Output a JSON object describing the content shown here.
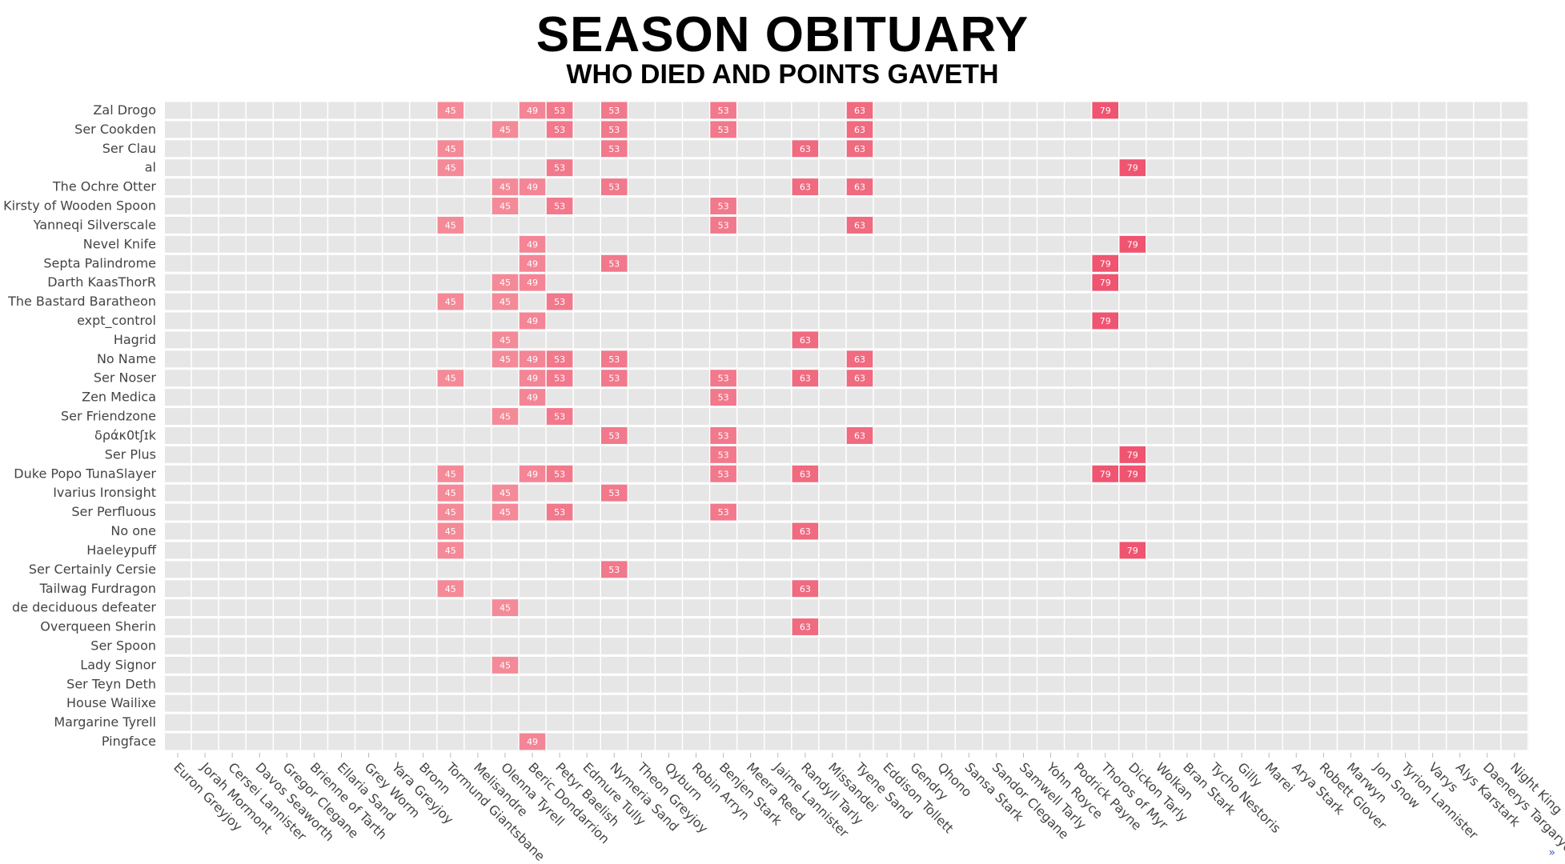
{
  "header": {
    "title": "SEASON OBITUARY",
    "subtitle": "WHO DIED AND POINTS GAVETH"
  },
  "more_link": "»",
  "colors": {
    "background": "#ffffff",
    "row_band": "#e6e6e6",
    "grid": "#ffffff",
    "tick": "#bbbbbb",
    "text": "#444444",
    "points_45": "#f48a98",
    "points_49": "#f48596",
    "points_53": "#f2788c",
    "points_63": "#f06a80",
    "points_79": "#ef5470"
  },
  "chart_data": {
    "type": "heatmap",
    "title": "SEASON OBITUARY",
    "subtitle": "WHO DIED AND POINTS GAVETH",
    "x": [
      "Euron Greyjoy",
      "Jorah Mormont",
      "Cersei Lannister",
      "Davos Seaworth",
      "Gregor Clegane",
      "Brienne of Tarth",
      "Ellaria Sand",
      "Grey Worm",
      "Yara Greyjoy",
      "Bronn",
      "Tormund Giantsbane",
      "Melisandre",
      "Olenna Tyrell",
      "Beric Dondarrion",
      "Petyr Baelish",
      "Edmure Tully",
      "Nymeria Sand",
      "Theon Greyjoy",
      "Qyburn",
      "Robin Arryn",
      "Benjen Stark",
      "Meera Reed",
      "Jaime Lannister",
      "Randyll Tarly",
      "Missandei",
      "Tyene Sand",
      "Eddison Tollett",
      "Gendry",
      "Qhono",
      "Sansa Stark",
      "Sandor Clegane",
      "Samwell Tarly",
      "Yohn Royce",
      "Podrick Payne",
      "Thoros of Myr",
      "Dickon Tarly",
      "Wolkan",
      "Bran Stark",
      "Tycho Nestoris",
      "Gilly",
      "Marei",
      "Arya Stark",
      "Robett Glover",
      "Marwyn",
      "Jon Snow",
      "Tyrion Lannister",
      "Varys",
      "Alys Karstark",
      "Daenerys Targaryen",
      "Night King"
    ],
    "y": [
      "Zal Drogo",
      "Ser Cookden",
      "Ser Clau",
      "al",
      "The Ochre Otter",
      "Kirsty of Wooden Spoon",
      "Yanneqi Silverscale",
      "Nevel Knife",
      "Septa Palindrome",
      "Darth KaasThorR",
      "The Bastard Baratheon",
      "expt_control",
      "Hagrid",
      "No Name",
      "Ser Noser",
      "Zen Medica",
      "Ser Friendzone",
      "δράκ0tʃɪk",
      "Ser Plus",
      "Duke Popo TunaSlayer",
      "Ivarius Ironsight",
      "Ser Perfluous",
      "No one",
      "Haeleypuff",
      "Ser Certainly Cersie",
      "Tailwag Furdragon",
      "de deciduous defeater",
      "Overqueen Sherin",
      "Ser Spoon",
      "Lady Signor",
      "Ser Teyn Deth",
      "House Wailixe",
      "Margarine Tyrell",
      "Pingface"
    ],
    "cells": [
      {
        "y": "Zal Drogo",
        "x": "Tormund Giantsbane",
        "value": 45
      },
      {
        "y": "Zal Drogo",
        "x": "Beric Dondarrion",
        "value": 49
      },
      {
        "y": "Zal Drogo",
        "x": "Petyr Baelish",
        "value": 53
      },
      {
        "y": "Zal Drogo",
        "x": "Nymeria Sand",
        "value": 53
      },
      {
        "y": "Zal Drogo",
        "x": "Benjen Stark",
        "value": 53
      },
      {
        "y": "Zal Drogo",
        "x": "Tyene Sand",
        "value": 63
      },
      {
        "y": "Zal Drogo",
        "x": "Thoros of Myr",
        "value": 79
      },
      {
        "y": "Ser Cookden",
        "x": "Olenna Tyrell",
        "value": 45
      },
      {
        "y": "Ser Cookden",
        "x": "Petyr Baelish",
        "value": 53
      },
      {
        "y": "Ser Cookden",
        "x": "Nymeria Sand",
        "value": 53
      },
      {
        "y": "Ser Cookden",
        "x": "Benjen Stark",
        "value": 53
      },
      {
        "y": "Ser Cookden",
        "x": "Tyene Sand",
        "value": 63
      },
      {
        "y": "Ser Clau",
        "x": "Tormund Giantsbane",
        "value": 45
      },
      {
        "y": "Ser Clau",
        "x": "Nymeria Sand",
        "value": 53
      },
      {
        "y": "Ser Clau",
        "x": "Randyll Tarly",
        "value": 63
      },
      {
        "y": "Ser Clau",
        "x": "Tyene Sand",
        "value": 63
      },
      {
        "y": "al",
        "x": "Tormund Giantsbane",
        "value": 45
      },
      {
        "y": "al",
        "x": "Petyr Baelish",
        "value": 53
      },
      {
        "y": "al",
        "x": "Dickon Tarly",
        "value": 79
      },
      {
        "y": "The Ochre Otter",
        "x": "Olenna Tyrell",
        "value": 45
      },
      {
        "y": "The Ochre Otter",
        "x": "Beric Dondarrion",
        "value": 49
      },
      {
        "y": "The Ochre Otter",
        "x": "Nymeria Sand",
        "value": 53
      },
      {
        "y": "The Ochre Otter",
        "x": "Randyll Tarly",
        "value": 63
      },
      {
        "y": "The Ochre Otter",
        "x": "Tyene Sand",
        "value": 63
      },
      {
        "y": "Kirsty of Wooden Spoon",
        "x": "Olenna Tyrell",
        "value": 45
      },
      {
        "y": "Kirsty of Wooden Spoon",
        "x": "Petyr Baelish",
        "value": 53
      },
      {
        "y": "Kirsty of Wooden Spoon",
        "x": "Benjen Stark",
        "value": 53
      },
      {
        "y": "Yanneqi Silverscale",
        "x": "Tormund Giantsbane",
        "value": 45
      },
      {
        "y": "Yanneqi Silverscale",
        "x": "Benjen Stark",
        "value": 53
      },
      {
        "y": "Yanneqi Silverscale",
        "x": "Tyene Sand",
        "value": 63
      },
      {
        "y": "Nevel Knife",
        "x": "Beric Dondarrion",
        "value": 49
      },
      {
        "y": "Nevel Knife",
        "x": "Dickon Tarly",
        "value": 79
      },
      {
        "y": "Septa Palindrome",
        "x": "Beric Dondarrion",
        "value": 49
      },
      {
        "y": "Septa Palindrome",
        "x": "Nymeria Sand",
        "value": 53
      },
      {
        "y": "Septa Palindrome",
        "x": "Thoros of Myr",
        "value": 79
      },
      {
        "y": "Darth KaasThorR",
        "x": "Olenna Tyrell",
        "value": 45
      },
      {
        "y": "Darth KaasThorR",
        "x": "Beric Dondarrion",
        "value": 49
      },
      {
        "y": "Darth KaasThorR",
        "x": "Thoros of Myr",
        "value": 79
      },
      {
        "y": "The Bastard Baratheon",
        "x": "Tormund Giantsbane",
        "value": 45
      },
      {
        "y": "The Bastard Baratheon",
        "x": "Olenna Tyrell",
        "value": 45
      },
      {
        "y": "The Bastard Baratheon",
        "x": "Petyr Baelish",
        "value": 53
      },
      {
        "y": "expt_control",
        "x": "Beric Dondarrion",
        "value": 49
      },
      {
        "y": "expt_control",
        "x": "Thoros of Myr",
        "value": 79
      },
      {
        "y": "Hagrid",
        "x": "Olenna Tyrell",
        "value": 45
      },
      {
        "y": "Hagrid",
        "x": "Randyll Tarly",
        "value": 63
      },
      {
        "y": "No Name",
        "x": "Olenna Tyrell",
        "value": 45
      },
      {
        "y": "No Name",
        "x": "Beric Dondarrion",
        "value": 49
      },
      {
        "y": "No Name",
        "x": "Petyr Baelish",
        "value": 53
      },
      {
        "y": "No Name",
        "x": "Nymeria Sand",
        "value": 53
      },
      {
        "y": "No Name",
        "x": "Tyene Sand",
        "value": 63
      },
      {
        "y": "Ser Noser",
        "x": "Tormund Giantsbane",
        "value": 45
      },
      {
        "y": "Ser Noser",
        "x": "Beric Dondarrion",
        "value": 49
      },
      {
        "y": "Ser Noser",
        "x": "Petyr Baelish",
        "value": 53
      },
      {
        "y": "Ser Noser",
        "x": "Nymeria Sand",
        "value": 53
      },
      {
        "y": "Ser Noser",
        "x": "Benjen Stark",
        "value": 53
      },
      {
        "y": "Ser Noser",
        "x": "Randyll Tarly",
        "value": 63
      },
      {
        "y": "Ser Noser",
        "x": "Tyene Sand",
        "value": 63
      },
      {
        "y": "Zen Medica",
        "x": "Beric Dondarrion",
        "value": 49
      },
      {
        "y": "Zen Medica",
        "x": "Benjen Stark",
        "value": 53
      },
      {
        "y": "Ser Friendzone",
        "x": "Olenna Tyrell",
        "value": 45
      },
      {
        "y": "Ser Friendzone",
        "x": "Petyr Baelish",
        "value": 53
      },
      {
        "y": "δράκ0tʃɪk",
        "x": "Nymeria Sand",
        "value": 53
      },
      {
        "y": "δράκ0tʃɪk",
        "x": "Benjen Stark",
        "value": 53
      },
      {
        "y": "δράκ0tʃɪk",
        "x": "Tyene Sand",
        "value": 63
      },
      {
        "y": "Ser Plus",
        "x": "Benjen Stark",
        "value": 53
      },
      {
        "y": "Ser Plus",
        "x": "Dickon Tarly",
        "value": 79
      },
      {
        "y": "Duke Popo TunaSlayer",
        "x": "Tormund Giantsbane",
        "value": 45
      },
      {
        "y": "Duke Popo TunaSlayer",
        "x": "Beric Dondarrion",
        "value": 49
      },
      {
        "y": "Duke Popo TunaSlayer",
        "x": "Petyr Baelish",
        "value": 53
      },
      {
        "y": "Duke Popo TunaSlayer",
        "x": "Benjen Stark",
        "value": 53
      },
      {
        "y": "Duke Popo TunaSlayer",
        "x": "Randyll Tarly",
        "value": 63
      },
      {
        "y": "Duke Popo TunaSlayer",
        "x": "Thoros of Myr",
        "value": 79
      },
      {
        "y": "Duke Popo TunaSlayer",
        "x": "Dickon Tarly",
        "value": 79
      },
      {
        "y": "Ivarius Ironsight",
        "x": "Tormund Giantsbane",
        "value": 45
      },
      {
        "y": "Ivarius Ironsight",
        "x": "Olenna Tyrell",
        "value": 45
      },
      {
        "y": "Ivarius Ironsight",
        "x": "Nymeria Sand",
        "value": 53
      },
      {
        "y": "Ser Perfluous",
        "x": "Tormund Giantsbane",
        "value": 45
      },
      {
        "y": "Ser Perfluous",
        "x": "Olenna Tyrell",
        "value": 45
      },
      {
        "y": "Ser Perfluous",
        "x": "Petyr Baelish",
        "value": 53
      },
      {
        "y": "Ser Perfluous",
        "x": "Benjen Stark",
        "value": 53
      },
      {
        "y": "No one",
        "x": "Tormund Giantsbane",
        "value": 45
      },
      {
        "y": "No one",
        "x": "Randyll Tarly",
        "value": 63
      },
      {
        "y": "Haeleypuff",
        "x": "Tormund Giantsbane",
        "value": 45
      },
      {
        "y": "Haeleypuff",
        "x": "Dickon Tarly",
        "value": 79
      },
      {
        "y": "Ser Certainly Cersie",
        "x": "Nymeria Sand",
        "value": 53
      },
      {
        "y": "Tailwag Furdragon",
        "x": "Tormund Giantsbane",
        "value": 45
      },
      {
        "y": "Tailwag Furdragon",
        "x": "Randyll Tarly",
        "value": 63
      },
      {
        "y": "de deciduous defeater",
        "x": "Olenna Tyrell",
        "value": 45
      },
      {
        "y": "Overqueen Sherin",
        "x": "Randyll Tarly",
        "value": 63
      },
      {
        "y": "Lady Signor",
        "x": "Olenna Tyrell",
        "value": 45
      },
      {
        "y": "Pingface",
        "x": "Beric Dondarrion",
        "value": 49
      }
    ]
  }
}
